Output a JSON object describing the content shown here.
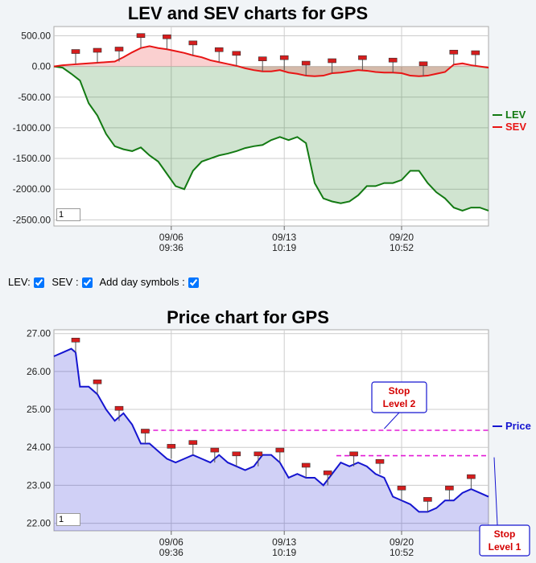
{
  "page": {
    "controls": {
      "lev_label": "LEV:",
      "sev_label": "SEV :",
      "day_symbols_label": "Add day symbols :",
      "lev_checked": true,
      "sev_checked": true,
      "day_symbols_checked": true
    },
    "input_value": "1"
  },
  "chart_data": [
    {
      "type": "area",
      "title": "LEV and SEV charts for GPS",
      "ylim": [
        -2600,
        650
      ],
      "yticks": [
        "500.00",
        "0.00",
        "-500.00",
        "-1000.00",
        "-1500.00",
        "-2000.00",
        "-2500.00"
      ],
      "ytick_values": [
        500,
        0,
        -500,
        -1000,
        -1500,
        -2000,
        -2500
      ],
      "xticks": [
        {
          "date": "09/06",
          "time": "09:36",
          "pos": 0.27
        },
        {
          "date": "09/13",
          "time": "10:19",
          "pos": 0.53
        },
        {
          "date": "09/20",
          "time": "10:52",
          "pos": 0.8
        }
      ],
      "legend": [
        {
          "name": "LEV",
          "color": "#137a13"
        },
        {
          "name": "SEV",
          "color": "#e81515"
        }
      ],
      "series": [
        {
          "name": "LEV",
          "color": "#137a13",
          "x": [
            0,
            0.02,
            0.04,
            0.06,
            0.08,
            0.1,
            0.12,
            0.14,
            0.16,
            0.18,
            0.2,
            0.22,
            0.24,
            0.26,
            0.28,
            0.3,
            0.32,
            0.34,
            0.36,
            0.38,
            0.4,
            0.42,
            0.44,
            0.46,
            0.48,
            0.5,
            0.52,
            0.54,
            0.56,
            0.58,
            0.6,
            0.62,
            0.64,
            0.66,
            0.68,
            0.7,
            0.72,
            0.74,
            0.76,
            0.78,
            0.8,
            0.82,
            0.84,
            0.86,
            0.88,
            0.9,
            0.92,
            0.94,
            0.96,
            0.98,
            1.0
          ],
          "values": [
            0,
            -20,
            -120,
            -230,
            -600,
            -800,
            -1100,
            -1300,
            -1350,
            -1380,
            -1320,
            -1450,
            -1550,
            -1750,
            -1950,
            -2000,
            -1700,
            -1550,
            -1500,
            -1450,
            -1420,
            -1380,
            -1330,
            -1300,
            -1280,
            -1200,
            -1150,
            -1200,
            -1150,
            -1250,
            -1900,
            -2150,
            -2200,
            -2230,
            -2200,
            -2100,
            -1950,
            -1950,
            -1900,
            -1900,
            -1850,
            -1700,
            -1700,
            -1900,
            -2050,
            -2150,
            -2300,
            -2350,
            -2300,
            -2300,
            -2350
          ]
        },
        {
          "name": "SEV",
          "color": "#e81515",
          "x": [
            0,
            0.02,
            0.04,
            0.06,
            0.08,
            0.1,
            0.12,
            0.14,
            0.16,
            0.18,
            0.2,
            0.22,
            0.24,
            0.26,
            0.28,
            0.3,
            0.32,
            0.34,
            0.36,
            0.38,
            0.4,
            0.42,
            0.44,
            0.46,
            0.48,
            0.5,
            0.52,
            0.54,
            0.56,
            0.58,
            0.6,
            0.62,
            0.64,
            0.66,
            0.68,
            0.7,
            0.72,
            0.74,
            0.76,
            0.78,
            0.8,
            0.82,
            0.84,
            0.86,
            0.88,
            0.9,
            0.92,
            0.94,
            0.96,
            0.98,
            1.0
          ],
          "values": [
            0,
            20,
            30,
            40,
            50,
            60,
            70,
            80,
            150,
            230,
            300,
            330,
            300,
            280,
            250,
            220,
            180,
            150,
            100,
            70,
            40,
            10,
            -30,
            -60,
            -80,
            -80,
            -60,
            -100,
            -120,
            -150,
            -160,
            -150,
            -110,
            -100,
            -80,
            -60,
            -70,
            -90,
            -100,
            -100,
            -110,
            -150,
            -160,
            -150,
            -120,
            -90,
            30,
            50,
            20,
            0,
            -20
          ]
        }
      ],
      "stop_markers": [
        0.05,
        0.1,
        0.15,
        0.2,
        0.26,
        0.32,
        0.38,
        0.42,
        0.48,
        0.53,
        0.58,
        0.64,
        0.71,
        0.78,
        0.85,
        0.92,
        0.97
      ]
    },
    {
      "type": "area",
      "title": "Price chart for GPS",
      "ylim": [
        21.8,
        27.1
      ],
      "yticks": [
        "27.00",
        "26.00",
        "25.00",
        "24.00",
        "23.00",
        "22.00"
      ],
      "ytick_values": [
        27,
        26,
        25,
        24,
        23,
        22
      ],
      "xticks": [
        {
          "date": "09/06",
          "time": "09:36",
          "pos": 0.27
        },
        {
          "date": "09/13",
          "time": "10:19",
          "pos": 0.53
        },
        {
          "date": "09/20",
          "time": "10:52",
          "pos": 0.8
        }
      ],
      "legend": [
        {
          "name": "Price",
          "color": "#1515d0"
        }
      ],
      "series": [
        {
          "name": "Price",
          "color": "#1515d0",
          "x": [
            0,
            0.02,
            0.04,
            0.05,
            0.06,
            0.08,
            0.1,
            0.12,
            0.14,
            0.16,
            0.18,
            0.2,
            0.22,
            0.24,
            0.26,
            0.28,
            0.3,
            0.32,
            0.34,
            0.36,
            0.38,
            0.4,
            0.42,
            0.44,
            0.46,
            0.48,
            0.5,
            0.52,
            0.54,
            0.56,
            0.58,
            0.6,
            0.62,
            0.64,
            0.66,
            0.68,
            0.7,
            0.72,
            0.74,
            0.76,
            0.78,
            0.8,
            0.82,
            0.84,
            0.86,
            0.88,
            0.9,
            0.92,
            0.94,
            0.96,
            0.98,
            1.0
          ],
          "values": [
            26.4,
            26.5,
            26.6,
            26.5,
            25.6,
            25.6,
            25.4,
            25.0,
            24.7,
            24.9,
            24.6,
            24.1,
            24.1,
            23.9,
            23.7,
            23.6,
            23.7,
            23.8,
            23.7,
            23.6,
            23.8,
            23.6,
            23.5,
            23.4,
            23.5,
            23.8,
            23.8,
            23.6,
            23.2,
            23.3,
            23.2,
            23.2,
            23.0,
            23.3,
            23.6,
            23.5,
            23.6,
            23.5,
            23.3,
            23.2,
            22.7,
            22.6,
            22.5,
            22.3,
            22.3,
            22.4,
            22.6,
            22.6,
            22.8,
            22.9,
            22.8,
            22.7
          ]
        }
      ],
      "stop_markers": [
        0.05,
        0.1,
        0.15,
        0.21,
        0.27,
        0.32,
        0.37,
        0.42,
        0.47,
        0.52,
        0.58,
        0.63,
        0.69,
        0.75,
        0.8,
        0.86,
        0.91,
        0.96
      ],
      "stop_levels": [
        {
          "label_line1": "Stop",
          "label_line2": "Level 2",
          "level": 24.45,
          "from": 0.21,
          "to": 1.0
        },
        {
          "label_line1": "Stop",
          "label_line2": "Level 1",
          "level": 23.78,
          "from": 0.65,
          "to": 1.0
        }
      ]
    }
  ]
}
